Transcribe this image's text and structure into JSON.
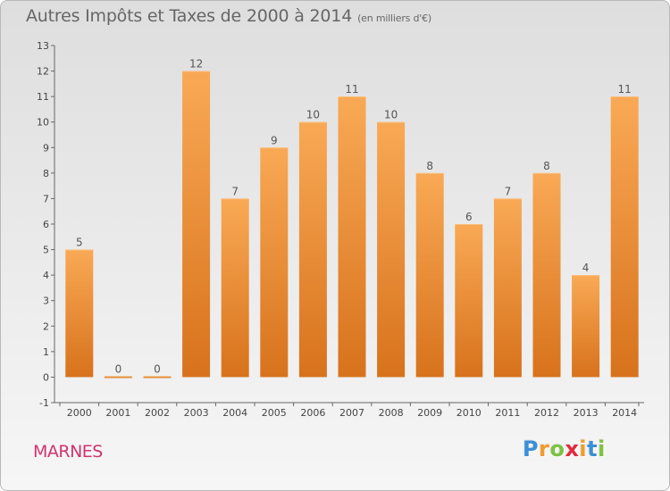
{
  "header": {
    "title": "Autres Impôts et Taxes de 2000 à 2014",
    "subtitle": "(en milliers d'€)"
  },
  "footer": {
    "commune": "MARNES",
    "logo_letters": [
      "P",
      "r",
      "o",
      "x",
      "i",
      "t",
      "i"
    ],
    "logo_colors": [
      "#3a8fd8",
      "#f39a2a",
      "#7cc242",
      "#e2293f",
      "#f39a2a",
      "#3a8fd8",
      "#7cc242"
    ]
  },
  "colors": {
    "bar_light": "#f9a955",
    "bar_dark": "#d8721c",
    "bar_top": "#fbbe7c"
  },
  "chart_data": {
    "type": "bar",
    "categories": [
      "2000",
      "2001",
      "2002",
      "2003",
      "2004",
      "2005",
      "2006",
      "2007",
      "2008",
      "2009",
      "2010",
      "2011",
      "2012",
      "2013",
      "2014"
    ],
    "values": [
      5,
      0,
      0,
      12,
      7,
      9,
      10,
      11,
      10,
      8,
      6,
      7,
      8,
      4,
      11
    ],
    "ylim": [
      -1,
      13
    ],
    "yticks": [
      -1,
      0,
      1,
      2,
      3,
      4,
      5,
      6,
      7,
      8,
      9,
      10,
      11,
      12,
      13
    ],
    "grid": false,
    "xlabel": "",
    "ylabel": ""
  }
}
